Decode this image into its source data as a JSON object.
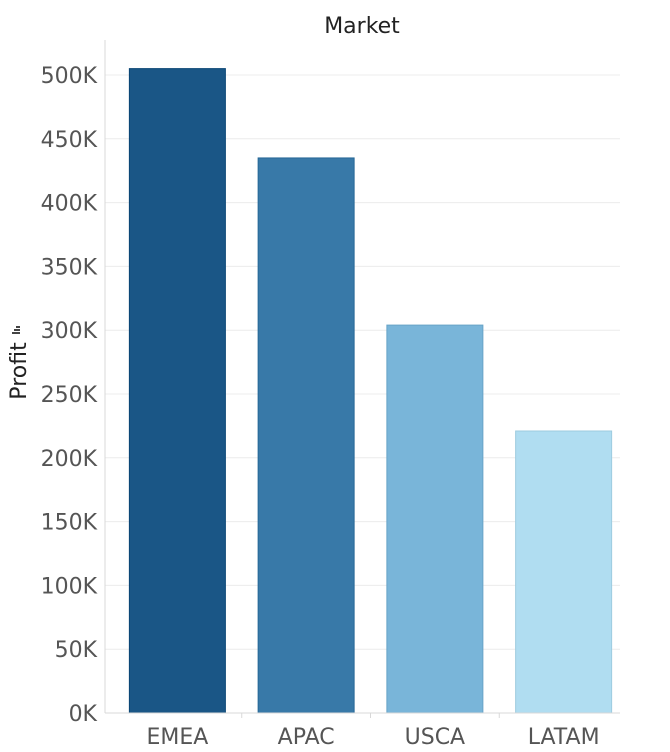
{
  "chart_data": {
    "type": "bar",
    "title": "Market",
    "ylabel": "Profit",
    "ylabel_icon": "sort-icon",
    "xlabel": "",
    "categories": [
      "EMEA",
      "APAC",
      "USCA",
      "LATAM"
    ],
    "values": [
      505000,
      435000,
      304000,
      221000
    ],
    "colors": [
      "#1a5686",
      "#3879a8",
      "#79b5d9",
      "#b0ddf1"
    ],
    "ylim": [
      0,
      500000
    ],
    "yticks": [
      {
        "value": 0,
        "label": "0K"
      },
      {
        "value": 50000,
        "label": "50K"
      },
      {
        "value": 100000,
        "label": "100K"
      },
      {
        "value": 150000,
        "label": "150K"
      },
      {
        "value": 200000,
        "label": "200K"
      },
      {
        "value": 250000,
        "label": "250K"
      },
      {
        "value": 300000,
        "label": "300K"
      },
      {
        "value": 350000,
        "label": "350K"
      },
      {
        "value": 400000,
        "label": "400K"
      },
      {
        "value": 450000,
        "label": "450K"
      },
      {
        "value": 500000,
        "label": "500K"
      }
    ],
    "grid": true,
    "legend": "none"
  }
}
